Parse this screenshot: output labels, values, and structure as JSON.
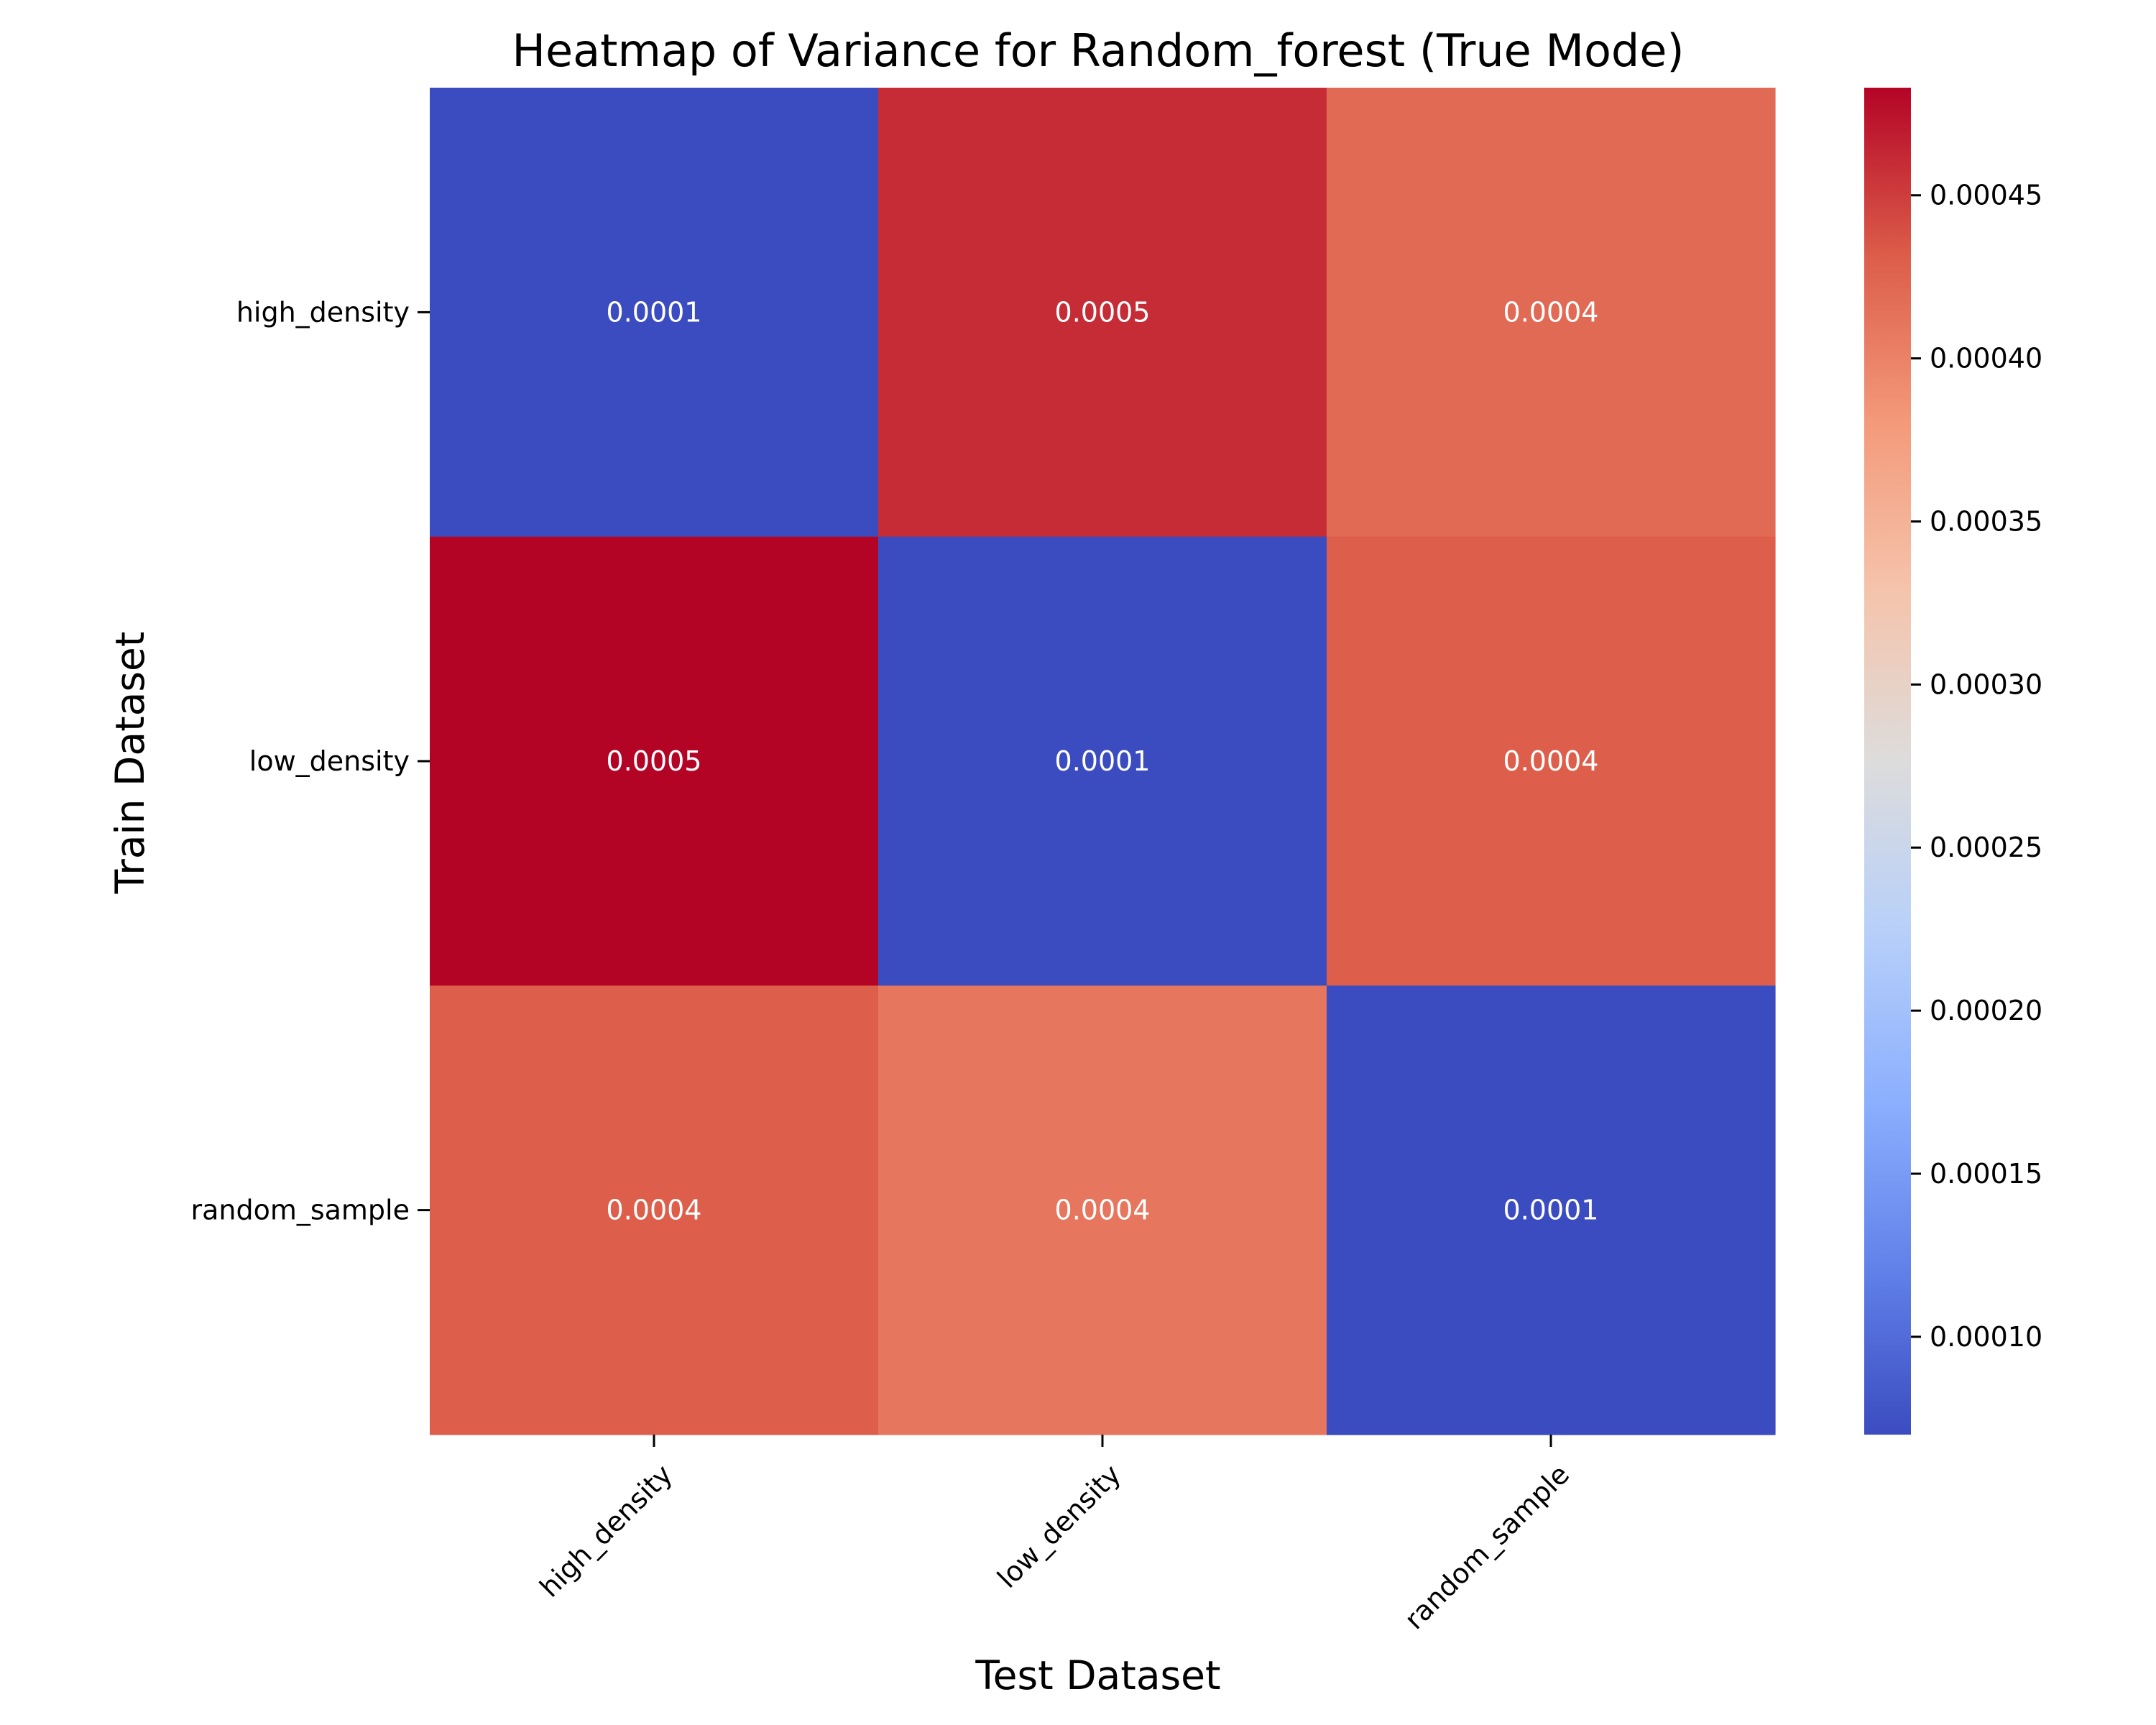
{
  "chart_data": {
    "type": "heatmap",
    "title": "Heatmap of Variance for Random_forest (True Mode)",
    "xlabel": "Test Dataset",
    "ylabel": "Train Dataset",
    "x_categories": [
      "high_density",
      "low_density",
      "random_sample"
    ],
    "y_categories": [
      "high_density",
      "low_density",
      "random_sample"
    ],
    "values": [
      [
        7e-05,
        0.00046,
        0.00042
      ],
      [
        0.000483,
        7e-05,
        0.00043
      ],
      [
        0.00043,
        0.00041,
        7e-05
      ]
    ],
    "cell_labels": [
      [
        "0.0001",
        "0.0005",
        "0.0004"
      ],
      [
        "0.0005",
        "0.0001",
        "0.0004"
      ],
      [
        "0.0004",
        "0.0004",
        "0.0001"
      ]
    ],
    "colormap": "coolwarm",
    "colorbar": {
      "vmin": 7e-05,
      "vmax": 0.000483,
      "ticks": [
        0.0001,
        0.00015,
        0.0002,
        0.00025,
        0.0003,
        0.00035,
        0.0004,
        0.00045
      ],
      "tick_labels": [
        "0.00010",
        "0.00015",
        "0.00020",
        "0.00025",
        "0.00030",
        "0.00035",
        "0.00040",
        "0.00045"
      ]
    },
    "grid": false
  },
  "colors": {
    "coolwarm_stops": [
      "#3b4cc0",
      "#6282ea",
      "#8db0fe",
      "#b8d0f9",
      "#dddcdc",
      "#f5c4ac",
      "#f49a7b",
      "#dc5d4a",
      "#b40426"
    ]
  }
}
